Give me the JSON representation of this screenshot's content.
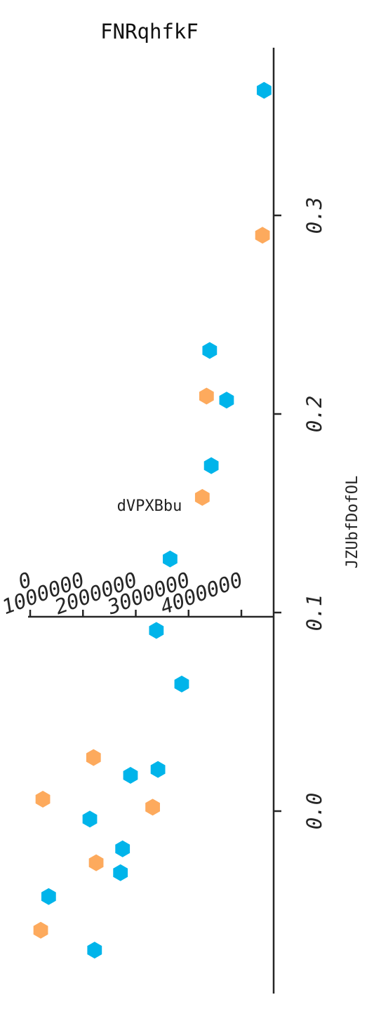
{
  "chart_data": {
    "type": "scatter",
    "title": "FNRqhfkF",
    "xlabel": "dVPXBbu",
    "ylabel": "JZUbfDofOL",
    "orientation": "rotated-90",
    "xlim": [
      -100000,
      4550000
    ],
    "ylim": [
      -0.09,
      0.387
    ],
    "x_ticks": [
      0,
      1000000,
      2000000,
      3000000,
      4000000
    ],
    "x_tick_labels": [
      "0",
      "1000000",
      "2000000",
      "3000000",
      "4000000"
    ],
    "y_ticks": [
      0.0,
      0.1,
      0.2,
      0.3
    ],
    "y_tick_labels": [
      "0.0",
      "0.1",
      "0.2",
      "0.3"
    ],
    "marker": "hexagon",
    "grid": false,
    "legend": "none",
    "series": [
      {
        "color": "#00b4ea",
        "points": [
          {
            "x": 4430000,
            "y": 0.363
          },
          {
            "x": 3400000,
            "y": 0.232
          },
          {
            "x": 3720000,
            "y": 0.207
          },
          {
            "x": 3430000,
            "y": 0.174
          },
          {
            "x": 2650000,
            "y": 0.127
          },
          {
            "x": 2390000,
            "y": 0.091
          },
          {
            "x": 2870000,
            "y": 0.064
          },
          {
            "x": 2420000,
            "y": 0.021
          },
          {
            "x": 1900000,
            "y": 0.018
          },
          {
            "x": 1130000,
            "y": -0.004
          },
          {
            "x": 1750000,
            "y": -0.019
          },
          {
            "x": 1710000,
            "y": -0.031
          },
          {
            "x": 350000,
            "y": -0.043
          },
          {
            "x": 1220000,
            "y": -0.07
          }
        ]
      },
      {
        "color": "#fdaa5d",
        "points": [
          {
            "x": 4400000,
            "y": 0.29
          },
          {
            "x": 3340000,
            "y": 0.209
          },
          {
            "x": 3260000,
            "y": 0.158
          },
          {
            "x": 1200000,
            "y": 0.027
          },
          {
            "x": 240000,
            "y": 0.006
          },
          {
            "x": 2320000,
            "y": 0.002
          },
          {
            "x": 1250000,
            "y": -0.026
          },
          {
            "x": 200000,
            "y": -0.06
          }
        ]
      }
    ]
  }
}
